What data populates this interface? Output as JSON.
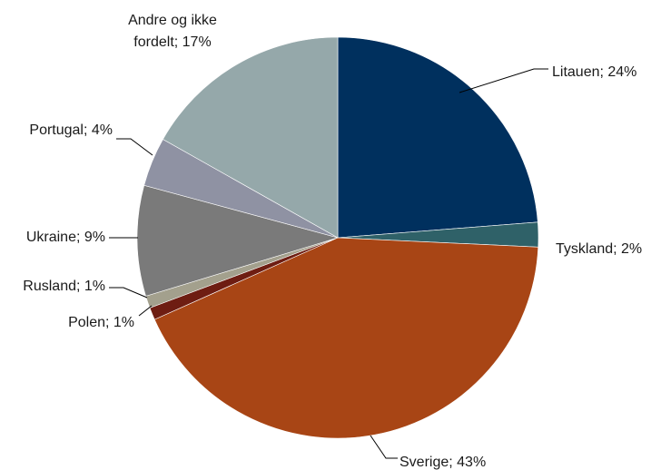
{
  "chart_data": {
    "type": "pie",
    "title": "",
    "slices": [
      {
        "name": "Litauen",
        "value": 24,
        "label": "Litauen; 24%",
        "color": "#00305e"
      },
      {
        "name": "Tyskland",
        "value": 2,
        "label": "Tyskland; 2%",
        "color": "#2f6168"
      },
      {
        "name": "Sverige",
        "value": 43,
        "label": "Sverige; 43%",
        "color": "#a84515"
      },
      {
        "name": "Polen",
        "value": 1,
        "label": "Polen; 1%",
        "color": "#6e1d12"
      },
      {
        "name": "Rusland",
        "value": 1,
        "label": "Rusland; 1%",
        "color": "#a3a08d"
      },
      {
        "name": "Ukraine",
        "value": 9,
        "label": "Ukraine; 9%",
        "color": "#7a7a7a"
      },
      {
        "name": "Portugal",
        "value": 4,
        "label": "Portugal; 4%",
        "color": "#8f92a3"
      },
      {
        "name": "Andre og ikke fordelt",
        "value": 17,
        "label_lines": [
          "Andre og ikke",
          "fordelt; 17%"
        ],
        "color": "#95a8aa"
      }
    ],
    "start_angle": "12 o'clock",
    "direction": "clockwise",
    "legend": "none"
  }
}
